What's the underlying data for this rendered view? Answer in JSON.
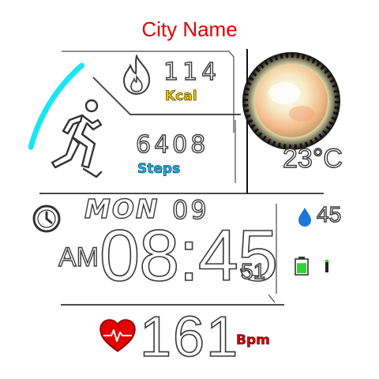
{
  "city": "City Name",
  "calories": {
    "value": "114",
    "label": "Kcal"
  },
  "steps": {
    "value": "6408",
    "label": "Steps"
  },
  "weather": {
    "temperature": "23",
    "unit": "°C",
    "icon": "sun-icon"
  },
  "date": {
    "day": "MON",
    "date": "09"
  },
  "time": {
    "ampm": "AM",
    "hm": "08:45",
    "seconds": "51"
  },
  "humidity": {
    "value": "45",
    "icon": "water-drop-icon"
  },
  "battery": {
    "icon": "battery-icon",
    "level": 0.8
  },
  "heart_rate": {
    "value": "161",
    "label": "Bpm",
    "icon": "heart-icon"
  },
  "steps_goal_progress": 0.22,
  "colors": {
    "city": "#e10000",
    "kcal": "#f2c400",
    "steps": "#19b6e8",
    "arc": "#19e6f2",
    "heart": "#e20000"
  }
}
